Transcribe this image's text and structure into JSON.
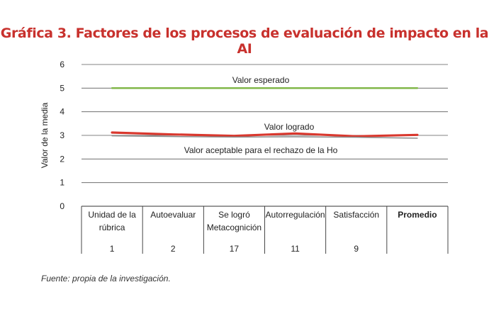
{
  "chart_data": {
    "type": "line",
    "title": "Gráfica 3. Factores de los procesos de evaluación de impacto en la AI",
    "ylabel": "Valor de la media",
    "ylim": [
      0,
      6
    ],
    "yticks": [
      "0",
      "1",
      "2",
      "3",
      "4",
      "5",
      "6"
    ],
    "grid": true,
    "categories": [
      {
        "name": "Unidad de la rúbrica",
        "n": "1",
        "bold": false
      },
      {
        "name": "Autoevaluar",
        "n": "2",
        "bold": false
      },
      {
        "name": "Se logró Metacognición",
        "n": "17",
        "bold": false
      },
      {
        "name": "Autorregulación",
        "n": "11",
        "bold": false
      },
      {
        "name": "Satisfacción",
        "n": "9",
        "bold": false
      },
      {
        "name": "Promedio",
        "n": "",
        "bold": true
      }
    ],
    "series": [
      {
        "name": "Valor esperado",
        "color": "#7cb442",
        "values": [
          5,
          5,
          5,
          5,
          5,
          5
        ]
      },
      {
        "name": "Valor logrado",
        "color": "#d9382e",
        "values": [
          3.12,
          3.04,
          2.98,
          3.08,
          2.96,
          3.02
        ]
      },
      {
        "name": "Valor aceptable para el rechazo de la Ho",
        "color": "#8a8a8a",
        "values": [
          2.98,
          2.95,
          2.93,
          2.94,
          2.92,
          2.88
        ]
      }
    ]
  },
  "footer": {
    "source": "Fuente: propia de la investigación."
  }
}
